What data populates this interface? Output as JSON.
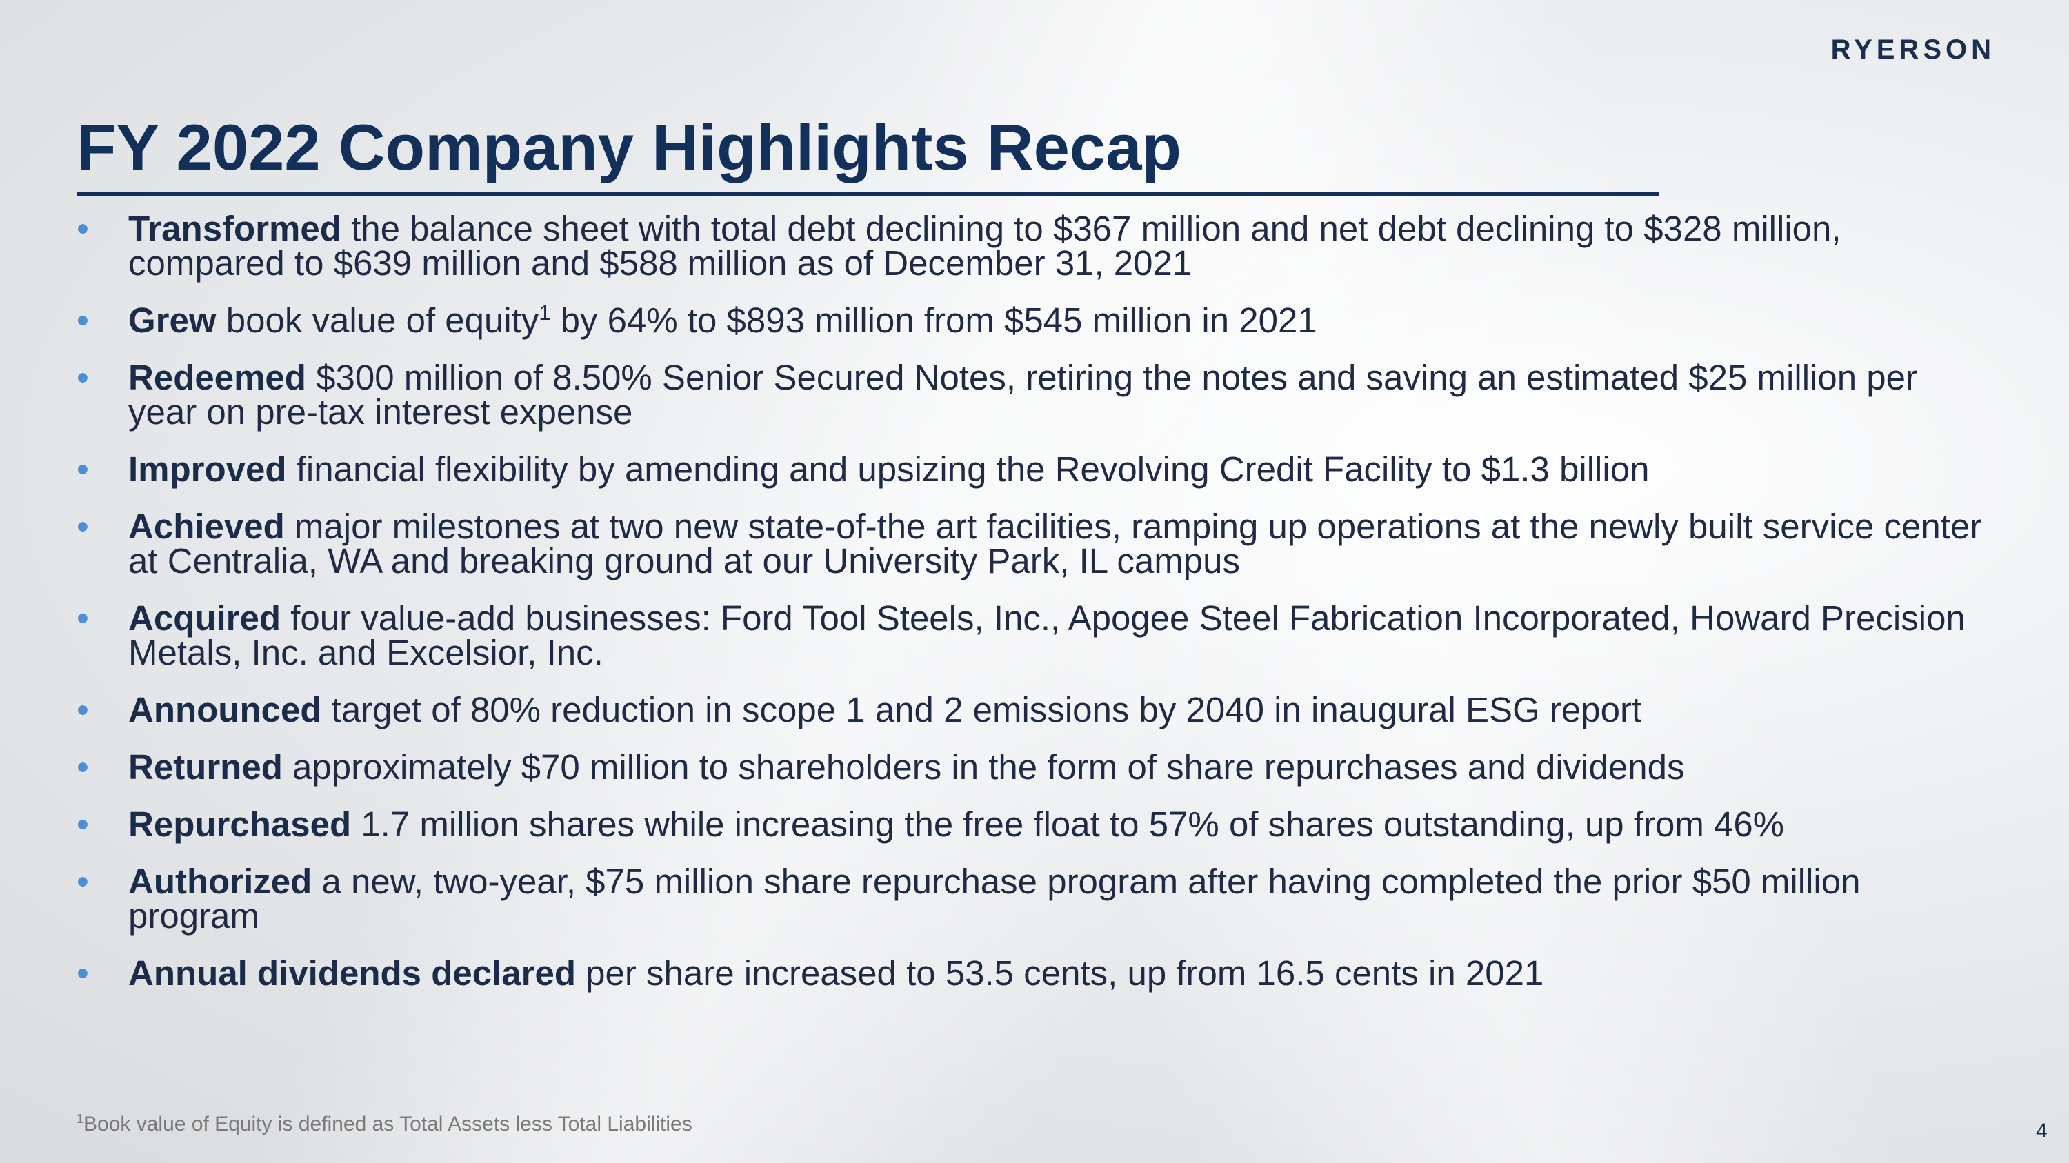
{
  "header": {
    "logo": "RYERSON",
    "title": "FY 2022 Company Highlights Recap"
  },
  "bullets": [
    {
      "bold": "Transformed",
      "text": " the balance sheet with total debt declining to $367 million and net debt declining to $328 million, compared to $639 million and $588 million as of December 31, 2021"
    },
    {
      "bold": "Grew",
      "text": " book value of equity",
      "sup": "1",
      "text_after": " by 64% to $893 million from $545 million in 2021"
    },
    {
      "bold": "Redeemed",
      "text": " $300 million of 8.50% Senior Secured Notes, retiring the notes and saving an estimated $25 million per year on pre-tax interest expense"
    },
    {
      "bold": "Improved",
      "text": " financial flexibility by amending and upsizing the Revolving Credit Facility to $1.3 billion"
    },
    {
      "bold": "Achieved",
      "text": " major milestones at two new state-of-the art facilities, ramping up operations at the newly built service center at Centralia, WA and breaking ground at our University Park, IL campus"
    },
    {
      "bold": "Acquired",
      "text": " four value-add businesses: Ford Tool Steels, Inc., Apogee Steel Fabrication Incorporated, Howard Precision Metals, Inc. and Excelsior, Inc."
    },
    {
      "bold": "Announced",
      "text": " target of 80% reduction in scope 1 and 2 emissions by 2040 in inaugural ESG report"
    },
    {
      "bold": "Returned",
      "text": " approximately $70 million to shareholders in the form of share repurchases and dividends"
    },
    {
      "bold": "Repurchased",
      "text": " 1.7 million shares while increasing the free float to 57% of shares outstanding, up from 46%"
    },
    {
      "bold": "Authorized",
      "text": " a new, two-year, $75 million share repurchase program after having completed the prior $50 million program"
    },
    {
      "bold": "Annual dividends declared",
      "text": " per share increased to 53.5 cents, up from 16.5 cents in 2021"
    }
  ],
  "footnote": {
    "sup": "1",
    "text": "Book value of Equity is defined as Total Assets less Total Liabilities"
  },
  "page_number": "4"
}
